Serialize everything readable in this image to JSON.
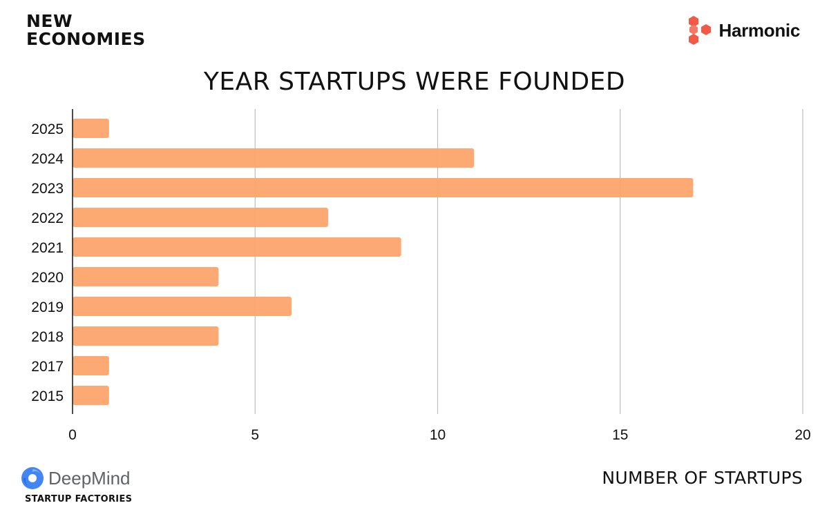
{
  "brand": {
    "line1": "NEW",
    "line2": "ECONOMIES"
  },
  "partner_logo": {
    "name": "Harmonic",
    "icon": "hexagon-cluster-icon",
    "color": "#f05a47"
  },
  "footer_logo": {
    "name": "DeepMind",
    "subtitle": "STARTUP FACTORIES",
    "icon": "deepmind-swirl-icon"
  },
  "colors": {
    "bar": "#fca46c",
    "grid": "#bdbdbd",
    "axis": "#111111",
    "text": "#111111"
  },
  "chart_data": {
    "type": "bar",
    "orientation": "horizontal",
    "title": "YEAR STARTUPS WERE FOUNDED",
    "xlabel": "NUMBER OF STARTUPS",
    "ylabel": "",
    "categories": [
      "2025",
      "2024",
      "2023",
      "2022",
      "2021",
      "2020",
      "2019",
      "2018",
      "2017",
      "2015"
    ],
    "values": [
      1,
      11,
      17,
      7,
      9,
      4,
      6,
      4,
      1,
      1
    ],
    "xlim": [
      0,
      20
    ],
    "xticks": [
      0,
      5,
      10,
      15,
      20
    ],
    "grid": true,
    "legend": "none"
  }
}
